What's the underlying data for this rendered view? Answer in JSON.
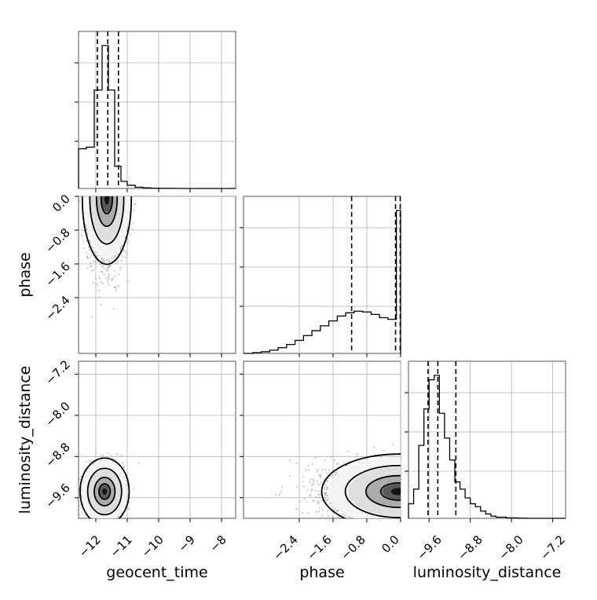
{
  "chart_data": {
    "type": "corner",
    "parameters": [
      "geocent_time",
      "phase",
      "luminosity_distance"
    ],
    "axes": {
      "geocent_time": {
        "label": "geocent_time",
        "range": [
          -12.55,
          -7.55
        ],
        "ticks": [
          -12,
          -11,
          -10,
          -9,
          -8
        ],
        "tick_labels": [
          "−12",
          "−11",
          "−10",
          "−9",
          "−8"
        ]
      },
      "phase": {
        "label": "phase",
        "range": [
          -3.72,
          0.0
        ],
        "ticks": [
          -2.4,
          -1.6,
          -0.8,
          0.0
        ],
        "tick_labels": [
          "−2.4",
          "−1.6",
          "−0.8",
          "0.0"
        ]
      },
      "luminosity_distance": {
        "label": "luminosity_distance",
        "range": [
          -10.0,
          -6.95
        ],
        "ticks": [
          -9.6,
          -8.8,
          -8.0,
          -7.2
        ],
        "tick_labels": [
          "−9.6",
          "−8.8",
          "−8.0",
          "−7.2"
        ]
      }
    },
    "grid": true,
    "histograms": {
      "geocent_time": {
        "bin_edges": [
          -12.55,
          -12.3,
          -12.05,
          -11.8,
          -11.6,
          -11.4,
          -11.2,
          -11.0,
          -10.75,
          -10.5,
          -10.25,
          -10.0,
          -9.75,
          -9.5,
          -9.25,
          -9.0,
          -8.75,
          -8.5,
          -8.25,
          -8.0,
          -7.75,
          -7.55
        ],
        "counts": [
          0.25,
          0.26,
          0.62,
          0.9,
          0.62,
          0.14,
          0.045,
          0.02,
          0.008,
          0.004,
          0.002,
          0.001,
          0.001,
          0.0005,
          0.0,
          0.0,
          0.0,
          0.0,
          0.0,
          0.0,
          0.0
        ],
        "quantiles": [
          -11.95,
          -11.62,
          -11.28
        ]
      },
      "phase": {
        "bin_edges": [
          -3.72,
          -3.5,
          -3.3,
          -3.1,
          -2.9,
          -2.7,
          -2.5,
          -2.3,
          -2.1,
          -1.9,
          -1.7,
          -1.5,
          -1.3,
          -1.1,
          -0.9,
          -0.7,
          -0.5,
          -0.3,
          -0.1,
          0.0
        ],
        "counts": [
          0.0,
          0.005,
          0.01,
          0.02,
          0.035,
          0.055,
          0.08,
          0.11,
          0.14,
          0.17,
          0.2,
          0.23,
          0.25,
          0.26,
          0.255,
          0.24,
          0.22,
          0.21,
          0.88
        ],
        "quantiles": [
          -1.16,
          -0.12,
          -0.01
        ]
      },
      "luminosity_distance": {
        "bin_edges": [
          -10.0,
          -9.9,
          -9.8,
          -9.7,
          -9.6,
          -9.5,
          -9.4,
          -9.3,
          -9.2,
          -9.1,
          -9.0,
          -8.9,
          -8.8,
          -8.7,
          -8.6,
          -8.5,
          -8.4,
          -8.3,
          -8.1,
          -7.9,
          -7.7,
          -6.95
        ],
        "counts": [
          0.1,
          0.2,
          0.5,
          0.75,
          0.95,
          0.98,
          0.72,
          0.55,
          0.4,
          0.25,
          0.2,
          0.14,
          0.1,
          0.08,
          0.05,
          0.03,
          0.015,
          0.008,
          0.003,
          0.001,
          0.0
        ],
        "quantiles": [
          -9.62,
          -9.43,
          -9.08
        ]
      }
    },
    "joint": [
      {
        "x": "geocent_time",
        "y": "phase",
        "center": [
          -11.65,
          -0.05
        ],
        "spread": [
          0.3,
          0.6
        ],
        "n_points": 1400
      },
      {
        "x": "geocent_time",
        "y": "luminosity_distance",
        "center": [
          -11.72,
          -9.48
        ],
        "spread": [
          0.3,
          0.25
        ],
        "n_points": 1300
      },
      {
        "x": "phase",
        "y": "luminosity_distance",
        "center": [
          -0.05,
          -9.48
        ],
        "spread": [
          0.7,
          0.28
        ],
        "n_points": 1300
      }
    ]
  }
}
